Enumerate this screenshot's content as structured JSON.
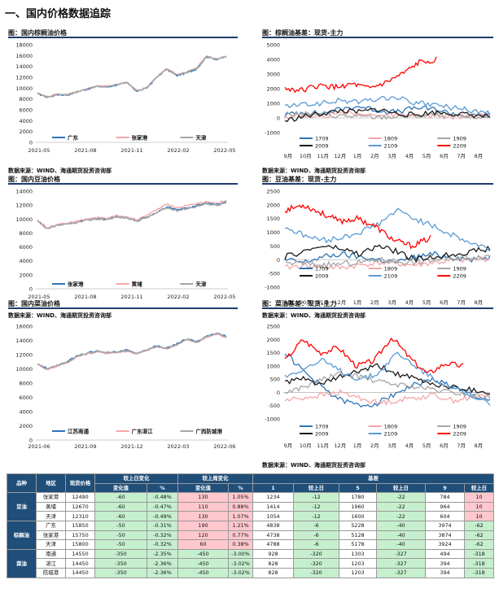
{
  "section_title": "一、国内价格数据追踪",
  "source_text": "数据来源：WIND、海通期货投资咨询部",
  "chart_data": [
    {
      "id": "palm_price",
      "type": "line",
      "title": "图：国内棕榈油价格",
      "ylim": [
        0,
        18000
      ],
      "yticks": [
        0,
        2000,
        4000,
        6000,
        8000,
        10000,
        12000,
        14000,
        16000,
        18000
      ],
      "xticks": [
        "2021-05",
        "2021-08",
        "2021-11",
        "2022-02",
        "2022-05"
      ],
      "series": [
        {
          "name": "广东",
          "color": "#2e75b6",
          "values": [
            9000,
            8300,
            8800,
            8700,
            9300,
            9800,
            10300,
            10200,
            10600,
            11000,
            9400,
            10000,
            12000,
            13500,
            12300,
            12800,
            13500,
            15800,
            15300,
            15850
          ]
        },
        {
          "name": "张家港",
          "color": "#f4a6a6",
          "values": [
            9100,
            8400,
            8900,
            8800,
            9400,
            9900,
            10400,
            10300,
            10700,
            11100,
            9500,
            10100,
            12100,
            13600,
            12500,
            13000,
            13700,
            15900,
            15400,
            15750
          ]
        },
        {
          "name": "天津",
          "color": "#a6a6a6",
          "values": [
            9050,
            8350,
            8850,
            8750,
            9350,
            9850,
            10350,
            10250,
            10650,
            11050,
            9450,
            10050,
            12050,
            13550,
            12400,
            12900,
            13600,
            15850,
            15350,
            15800
          ]
        }
      ]
    },
    {
      "id": "palm_basis",
      "type": "line",
      "title": "图：棕榈油基差：现货-主力",
      "ylim": [
        -1000,
        5000
      ],
      "yticks": [
        -1000,
        0,
        1000,
        2000,
        3000,
        4000,
        5000
      ],
      "xticks": [
        "9月",
        "10月",
        "11月",
        "12月",
        "1月",
        "2月",
        "3月",
        "4月",
        "5月",
        "6月",
        "7月",
        "8月"
      ],
      "series": [
        {
          "name": "1709",
          "color": "#2e75b6",
          "values": [
            200,
            400,
            300,
            600,
            800,
            500,
            400,
            700,
            600,
            300,
            100,
            200
          ]
        },
        {
          "name": "1809",
          "color": "#f4a6a6",
          "values": [
            100,
            200,
            150,
            300,
            250,
            100,
            200,
            150,
            100,
            50,
            100,
            200
          ]
        },
        {
          "name": "1909",
          "color": "#a6a6a6",
          "values": [
            300,
            250,
            200,
            150,
            100,
            50,
            100,
            150,
            200,
            100,
            50,
            100
          ]
        },
        {
          "name": "2009",
          "color": "#1a1a1a",
          "values": [
            -200,
            100,
            300,
            500,
            400,
            600,
            300,
            200,
            400,
            300,
            200,
            100
          ]
        },
        {
          "name": "2109",
          "color": "#5b9bd5",
          "values": [
            800,
            900,
            1000,
            1200,
            1100,
            1300,
            1400,
            1000,
            900,
            700,
            500,
            300
          ]
        },
        {
          "name": "2209",
          "color": "#ff0000",
          "values": [
            2000,
            1900,
            2200,
            2100,
            2300,
            2000,
            2400,
            3000,
            3800,
            4000
          ]
        }
      ]
    },
    {
      "id": "soy_price",
      "type": "line",
      "title": "图：国内豆油价格",
      "ylim": [
        0,
        14000
      ],
      "yticks": [
        0,
        2000,
        4000,
        6000,
        8000,
        10000,
        12000,
        14000
      ],
      "xticks": [
        "2021-05",
        "2021-08",
        "2021-11",
        "2022-02",
        "2022-05"
      ],
      "series": [
        {
          "name": "张家港",
          "color": "#2e75b6",
          "values": [
            9800,
            8600,
            9200,
            9300,
            9600,
            9900,
            10100,
            10000,
            10400,
            10200,
            9800,
            10300,
            11000,
            11700,
            11300,
            11600,
            11900,
            12300,
            12100,
            12490
          ]
        },
        {
          "name": "黄埔",
          "color": "#f4a6a6",
          "values": [
            9900,
            8700,
            9300,
            9400,
            9700,
            10000,
            10200,
            10100,
            10500,
            10300,
            9900,
            10500,
            11300,
            12200,
            11600,
            11900,
            12200,
            12500,
            12300,
            12670
          ]
        },
        {
          "name": "天津",
          "color": "#a6a6a6",
          "values": [
            9700,
            8500,
            9100,
            9200,
            9500,
            9800,
            10000,
            9900,
            10300,
            10100,
            9700,
            10200,
            10900,
            11600,
            11200,
            11500,
            11800,
            12200,
            12000,
            12310
          ]
        }
      ]
    },
    {
      "id": "soy_basis",
      "type": "line",
      "title": "图：豆油基差：现货-主力",
      "ylim": [
        -1000,
        2500
      ],
      "yticks": [
        -1000,
        -500,
        0,
        500,
        1000,
        1500,
        2000,
        2500
      ],
      "xticks": [
        "9月",
        "10月",
        "11月",
        "12月",
        "1月",
        "2月",
        "3月",
        "4月",
        "5月",
        "6月",
        "7月",
        "8月"
      ],
      "series": [
        {
          "name": "1709",
          "color": "#2e75b6",
          "values": [
            0,
            -100,
            100,
            200,
            100,
            0,
            -100,
            100,
            200,
            100,
            0,
            100
          ]
        },
        {
          "name": "1809",
          "color": "#f4a6a6",
          "values": [
            -300,
            -200,
            -250,
            -300,
            -200,
            -100,
            -150,
            -200,
            -100,
            -50,
            0,
            50
          ]
        },
        {
          "name": "1909",
          "color": "#a6a6a6",
          "values": [
            -100,
            -150,
            -200,
            -150,
            -100,
            0,
            -50,
            -100,
            0,
            50,
            100,
            150
          ]
        },
        {
          "name": "2009",
          "color": "#1a1a1a",
          "values": [
            100,
            300,
            500,
            400,
            200,
            500,
            300,
            0,
            100,
            200,
            300,
            400
          ]
        },
        {
          "name": "2109",
          "color": "#5b9bd5",
          "values": [
            1200,
            900,
            700,
            800,
            1000,
            1300,
            1800,
            1500,
            1200,
            900,
            600,
            400
          ]
        },
        {
          "name": "2209",
          "color": "#ff0000",
          "values": [
            1800,
            2000,
            1700,
            1400,
            1500,
            1200,
            700,
            500,
            800
          ]
        }
      ]
    },
    {
      "id": "rapeseed_price",
      "type": "line",
      "title": "图：国内菜油价格",
      "ylim": [
        0,
        16000
      ],
      "yticks": [
        0,
        2000,
        4000,
        6000,
        8000,
        10000,
        12000,
        14000,
        16000
      ],
      "xticks": [
        "2021-06",
        "2021-09",
        "2021-12",
        "2022-03",
        "2022-06"
      ],
      "series": [
        {
          "name": "江苏南通",
          "color": "#2e75b6",
          "values": [
            10800,
            10000,
            10500,
            11000,
            11800,
            12200,
            12500,
            12300,
            12400,
            12600,
            12200,
            12700,
            13200,
            12900,
            13500,
            14200,
            13800,
            14500,
            15000,
            14550
          ]
        },
        {
          "name": "广东湛江",
          "color": "#f4a6a6",
          "values": [
            10700,
            9900,
            10400,
            10900,
            11700,
            12100,
            12400,
            12200,
            12300,
            12500,
            12100,
            12600,
            13100,
            12800,
            13400,
            14100,
            13700,
            14400,
            14900,
            14450
          ]
        },
        {
          "name": "广西防城港",
          "color": "#a6a6a6",
          "values": [
            10750,
            9950,
            10450,
            10950,
            11750,
            12150,
            12450,
            12250,
            12350,
            12550,
            12150,
            12650,
            13150,
            12850,
            13450,
            14150,
            13750,
            14450,
            14950,
            14450
          ]
        }
      ]
    },
    {
      "id": "rapeseed_basis",
      "type": "line",
      "title": "图：菜油基差：现货-主力",
      "ylim": [
        -1000,
        2500
      ],
      "yticks": [
        -1000,
        -500,
        0,
        500,
        1000,
        1500,
        2000,
        2500
      ],
      "xticks": [
        "9月",
        "10月",
        "11月",
        "12月",
        "1月",
        "2月",
        "3月",
        "4月",
        "5月",
        "6月",
        "7月",
        "8月"
      ],
      "series": [
        {
          "name": "1709",
          "color": "#2e75b6",
          "values": [
            1500,
            800,
            200,
            -300,
            -500,
            -400,
            0,
            300,
            500,
            200,
            -100,
            -300
          ]
        },
        {
          "name": "1809",
          "color": "#f4a6a6",
          "values": [
            -300,
            -200,
            -100,
            0,
            -200,
            -400,
            -300,
            -200,
            -100,
            -300,
            -200,
            -100
          ]
        },
        {
          "name": "1909",
          "color": "#a6a6a6",
          "values": [
            0,
            200,
            500,
            700,
            600,
            400,
            300,
            200,
            100,
            0,
            -100,
            -200
          ]
        },
        {
          "name": "2009",
          "color": "#1a1a1a",
          "values": [
            400,
            500,
            300,
            600,
            800,
            1000,
            700,
            500,
            300,
            200,
            100,
            0
          ]
        },
        {
          "name": "2109",
          "color": "#5b9bd5",
          "values": [
            600,
            900,
            1200,
            800,
            500,
            700,
            1500,
            1000,
            500,
            200,
            -200,
            -400
          ]
        },
        {
          "name": "2209",
          "color": "#ff0000",
          "values": [
            1200,
            2000,
            1500,
            1700,
            1000,
            1200,
            2100,
            1300,
            700,
            1100,
            1000
          ]
        }
      ]
    }
  ],
  "table": {
    "headers_top": [
      "品种",
      "地区",
      "现货价格",
      "较上日变化",
      "较上周变化",
      "基差"
    ],
    "headers_sub": [
      "变化值",
      "%",
      "变化值",
      "%",
      "1",
      "较上日",
      "5",
      "较上日",
      "9",
      "较上日"
    ],
    "groups": [
      {
        "name": "豆油",
        "rows": [
          [
            "张家港",
            "12490",
            "-60",
            "-0.48%",
            "130",
            "1.05%",
            "1234",
            "-12",
            "1780",
            "-22",
            "784",
            "10"
          ],
          [
            "黄埔",
            "12670",
            "-60",
            "-0.47%",
            "110",
            "0.88%",
            "1414",
            "-12",
            "1960",
            "-22",
            "964",
            "10"
          ],
          [
            "天津",
            "12310",
            "-60",
            "-0.49%",
            "130",
            "1.07%",
            "1054",
            "-12",
            "1600",
            "-22",
            "604",
            "10"
          ]
        ]
      },
      {
        "name": "棕榈油",
        "rows": [
          [
            "广东",
            "15850",
            "-50",
            "-0.31%",
            "190",
            "1.21%",
            "4838",
            "-6",
            "5228",
            "-40",
            "3974",
            "-62"
          ],
          [
            "张家港",
            "15750",
            "-50",
            "-0.32%",
            "120",
            "0.77%",
            "4738",
            "-6",
            "5128",
            "-40",
            "3874",
            "-62"
          ],
          [
            "天津",
            "15800",
            "-50",
            "-0.32%",
            "60",
            "0.38%",
            "4788",
            "-6",
            "5178",
            "-40",
            "3924",
            "-62"
          ]
        ]
      },
      {
        "name": "菜油",
        "rows": [
          [
            "南通",
            "14550",
            "-350",
            "-2.35%",
            "-450",
            "-3.00%",
            "928",
            "-320",
            "1303",
            "-327",
            "494",
            "-318"
          ],
          [
            "湛江",
            "14450",
            "-350",
            "-2.36%",
            "-450",
            "-3.02%",
            "828",
            "-320",
            "1203",
            "-327",
            "394",
            "-318"
          ],
          [
            "防城港",
            "14450",
            "-350",
            "-2.36%",
            "-450",
            "-3.02%",
            "828",
            "-320",
            "1203",
            "-327",
            "394",
            "-318"
          ]
        ]
      }
    ]
  }
}
